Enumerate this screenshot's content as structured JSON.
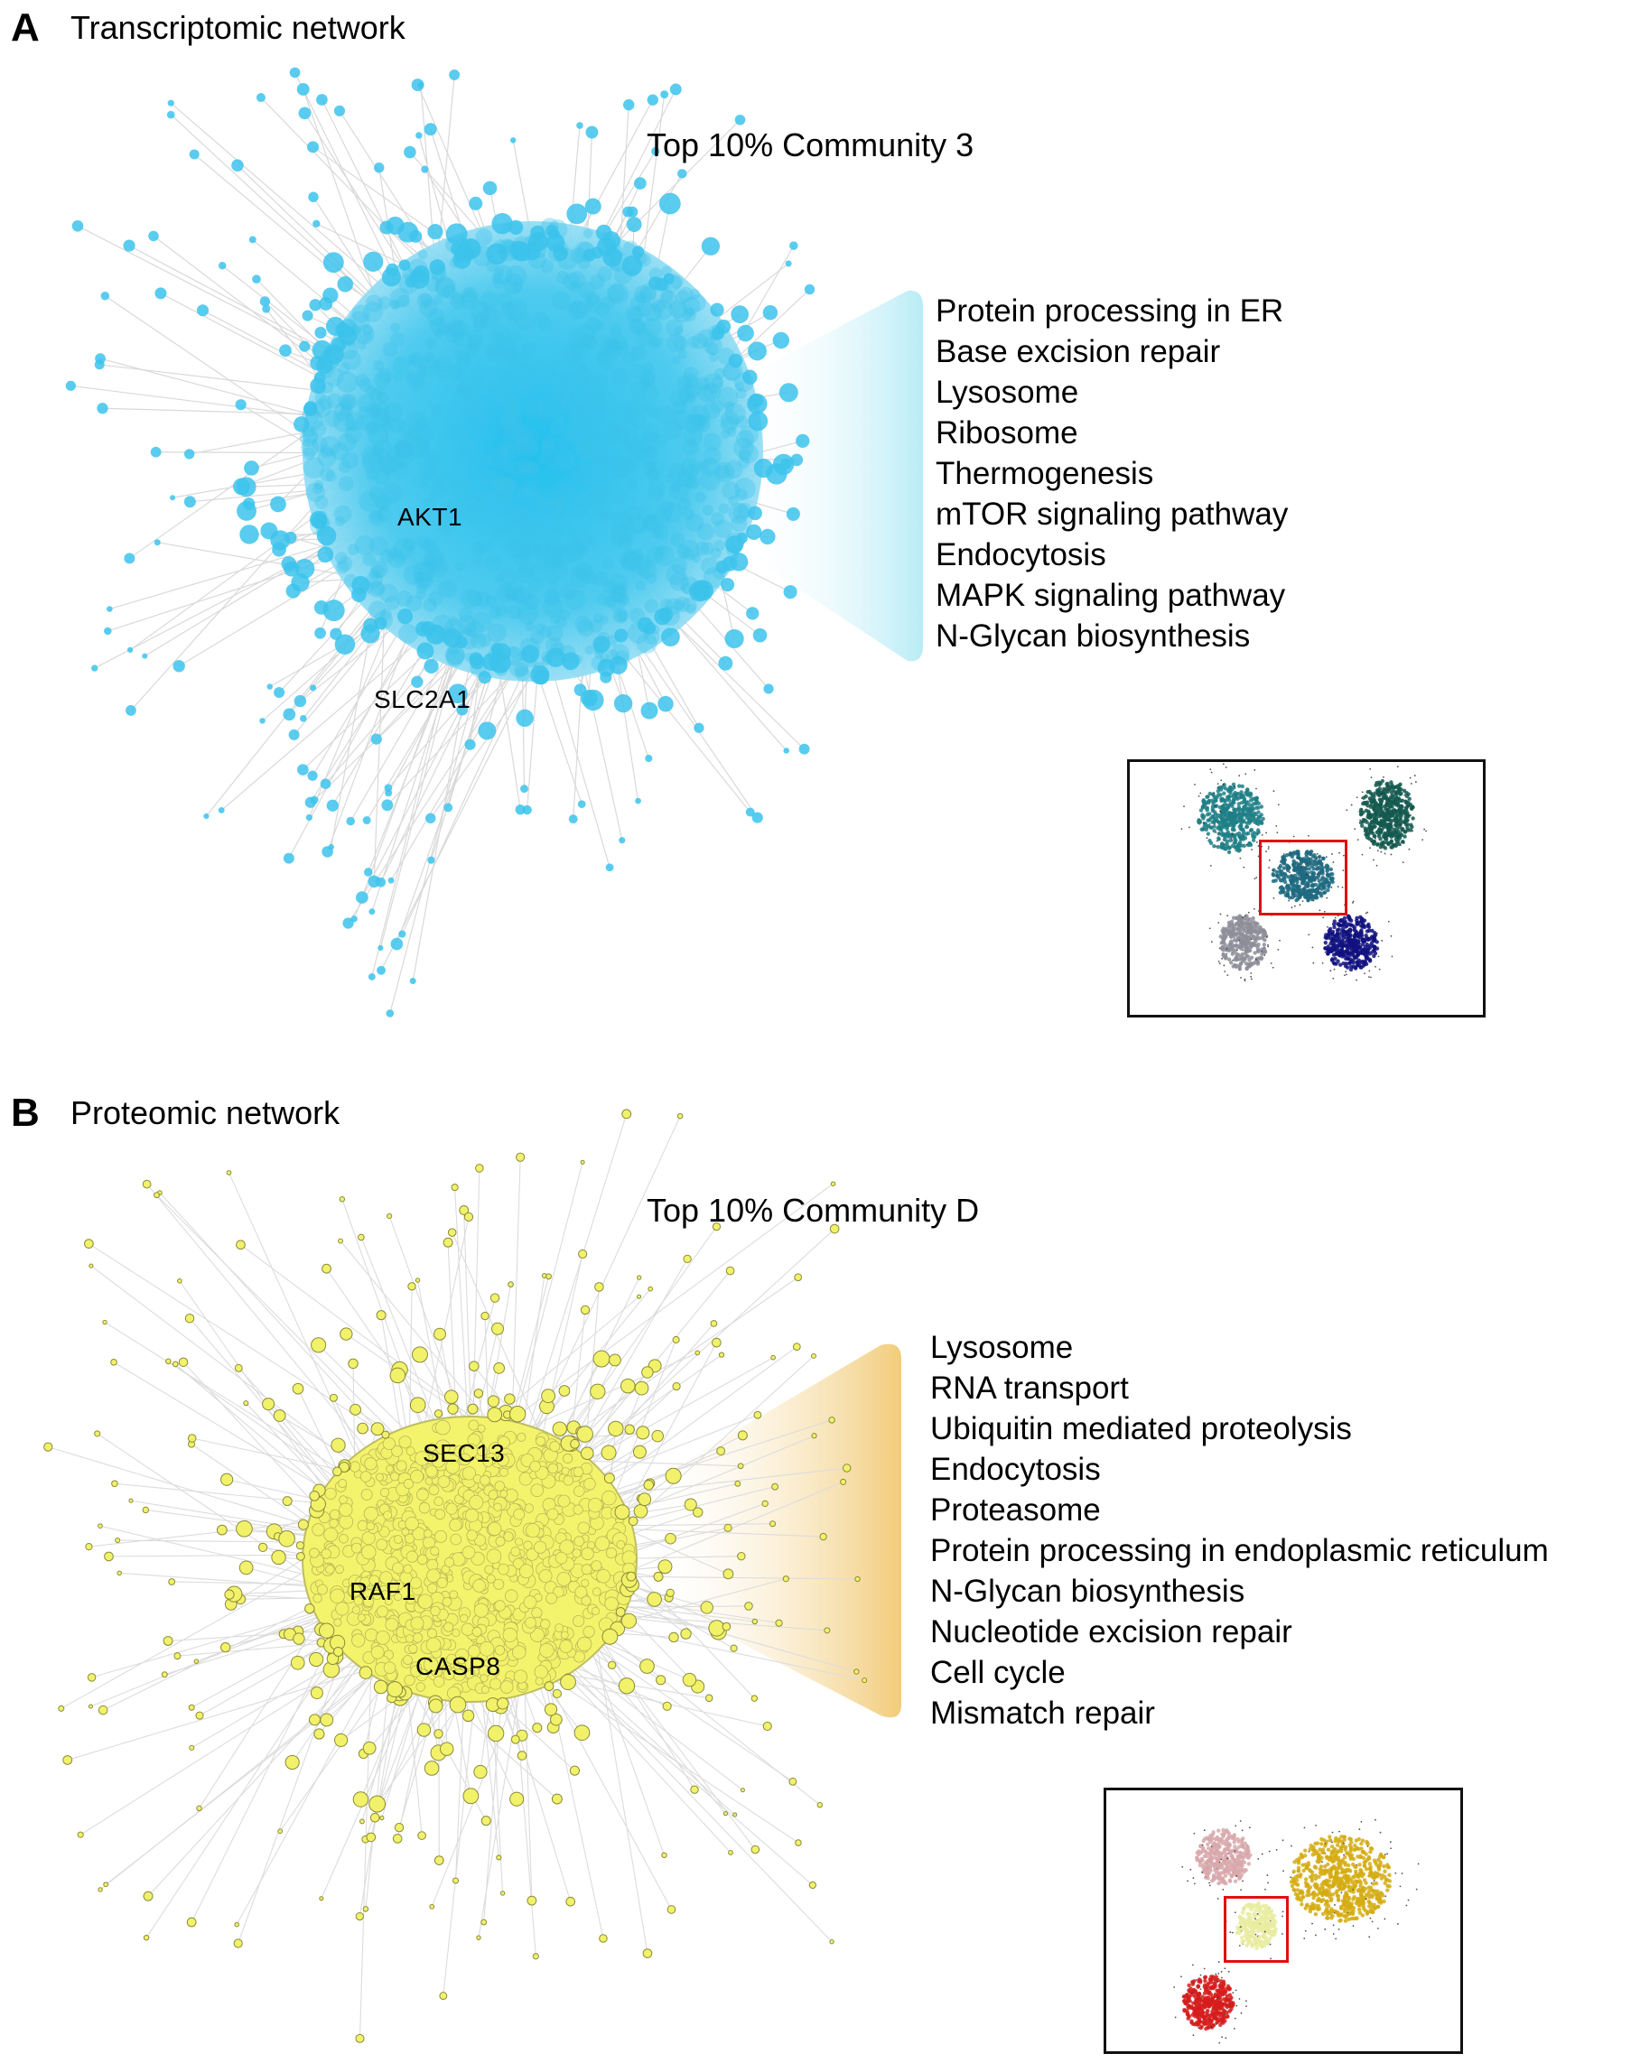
{
  "panel_a": {
    "letter": "A",
    "title": "Transcriptomic network",
    "community_label": "Top 10% Community 3",
    "node_labels": [
      "AKT1",
      "SLC2A1"
    ],
    "pathways": [
      "Protein processing in ER",
      "Base excision repair",
      "Lysosome",
      "Ribosome",
      "Thermogenesis",
      "mTOR signaling pathway",
      "Endocytosis",
      "MAPK signaling pathway",
      "N-Glycan biosynthesis"
    ],
    "node_color": "#3cc3ec",
    "wedge_color": "#bfeef7",
    "inset_cluster_colors": [
      "#1f7f86",
      "#14594f",
      "#1e6a80",
      "#8e8e9a",
      "#101080"
    ]
  },
  "panel_b": {
    "letter": "B",
    "title": "Proteomic network",
    "community_label": "Top 10% Community D",
    "node_labels": [
      "SEC13",
      "RAF1",
      "CASP8"
    ],
    "pathways": [
      "Lysosome",
      "RNA transport",
      "Ubiquitin mediated proteolysis",
      "Endocytosis",
      "Proteasome",
      "Protein processing in endoplasmic reticulum",
      "N-Glycan biosynthesis",
      "Nucleotide excision repair",
      "Cell cycle",
      "Mismatch repair"
    ],
    "node_color": "#f2f26a",
    "wedge_color": "#f3cf80",
    "inset_cluster_colors": [
      "#d8a8ac",
      "#d4ab10",
      "#e8eca0",
      "#d61c1c"
    ]
  },
  "inset_highlight_color": "#e01010"
}
